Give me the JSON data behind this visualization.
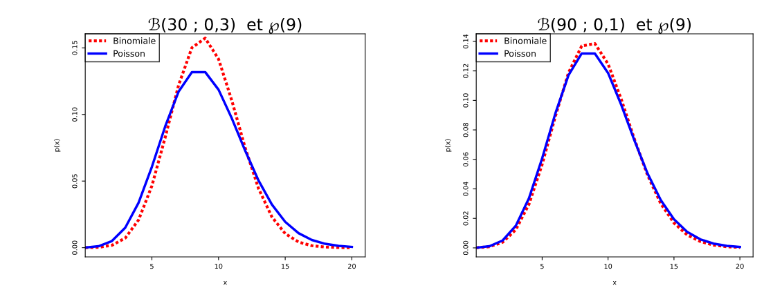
{
  "chart_data": [
    {
      "type": "line",
      "title": "ℬ(30 ; 0,3)  et ℘(9)",
      "xlabel": "x",
      "ylabel": "p(x)",
      "x": [
        0,
        1,
        2,
        3,
        4,
        5,
        6,
        7,
        8,
        9,
        10,
        11,
        12,
        13,
        14,
        15,
        16,
        17,
        18,
        19,
        20
      ],
      "xlim": [
        0,
        21
      ],
      "xticks": [
        5,
        10,
        15,
        20
      ],
      "ylim": [
        -0.0069,
        0.1605
      ],
      "yticks": [
        {
          "value": 0,
          "label": "0.00"
        },
        {
          "value": 0.05,
          "label": "0.05"
        },
        {
          "value": 0.1,
          "label": "0.10"
        },
        {
          "value": 0.15,
          "label": "0.15"
        }
      ],
      "legend": "top left",
      "grid": false,
      "series": [
        {
          "name": "Binomiale",
          "color": "#ff0000",
          "line_style": "dotted",
          "values": [
            0.0,
            0.0003,
            0.0018,
            0.0072,
            0.0208,
            0.0464,
            0.0829,
            0.1219,
            0.1501,
            0.1573,
            0.1416,
            0.1103,
            0.0749,
            0.0444,
            0.0231,
            0.0106,
            0.0042,
            0.0015,
            0.0005,
            0.0001,
            0.0
          ]
        },
        {
          "name": "Poisson",
          "color": "#0000ff",
          "line_style": "solid",
          "values": [
            0.0001,
            0.0011,
            0.005,
            0.015,
            0.0337,
            0.0607,
            0.0911,
            0.1171,
            0.1318,
            0.1318,
            0.1186,
            0.097,
            0.0728,
            0.0504,
            0.0324,
            0.0194,
            0.0109,
            0.0058,
            0.0029,
            0.0014,
            0.0006
          ]
        }
      ]
    },
    {
      "type": "line",
      "title": "ℬ(90 ; 0,1)  et ℘(9)",
      "xlabel": "x",
      "ylabel": "p(x)",
      "x": [
        0,
        1,
        2,
        3,
        4,
        5,
        6,
        7,
        8,
        9,
        10,
        11,
        12,
        13,
        14,
        15,
        16,
        17,
        18,
        19,
        20
      ],
      "xlim": [
        0,
        21
      ],
      "xticks": [
        5,
        10,
        15,
        20
      ],
      "ylim": [
        -0.0061,
        0.1451
      ],
      "yticks": [
        {
          "value": 0,
          "label": "0.00"
        },
        {
          "value": 0.02,
          "label": "0.02"
        },
        {
          "value": 0.04,
          "label": "0.04"
        },
        {
          "value": 0.06,
          "label": "0.06"
        },
        {
          "value": 0.08,
          "label": "0.08"
        },
        {
          "value": 0.1,
          "label": "0.10"
        },
        {
          "value": 0.12,
          "label": "0.12"
        },
        {
          "value": 0.14,
          "label": "0.14"
        }
      ],
      "legend": "top left",
      "grid": false,
      "series": [
        {
          "name": "Binomiale",
          "color": "#ff0000",
          "line_style": "dotted",
          "values": [
            0.0001,
            0.0008,
            0.0038,
            0.0123,
            0.0296,
            0.0566,
            0.0891,
            0.1188,
            0.1369,
            0.1385,
            0.1247,
            0.1008,
            0.0737,
            0.0492,
            0.03,
            0.0169,
            0.0088,
            0.0043,
            0.0019,
            0.0008,
            0.0003
          ]
        },
        {
          "name": "Poisson",
          "color": "#0000ff",
          "line_style": "solid",
          "values": [
            0.0001,
            0.0011,
            0.005,
            0.015,
            0.0337,
            0.0607,
            0.0911,
            0.1171,
            0.1318,
            0.1318,
            0.1186,
            0.097,
            0.0728,
            0.0504,
            0.0324,
            0.0194,
            0.0109,
            0.0058,
            0.0029,
            0.0014,
            0.0006
          ]
        }
      ]
    }
  ]
}
